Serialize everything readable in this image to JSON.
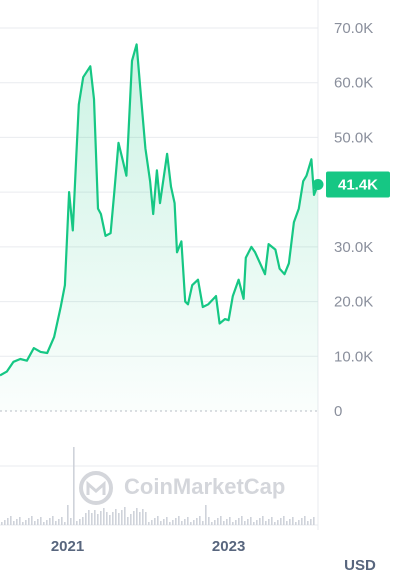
{
  "watermark": "CoinMarketCap",
  "currency": "USD",
  "colors": {
    "line": "#16c784",
    "grid": "#e9ebef",
    "axis_text": "#8a8f9c",
    "volume": "#cfd3da"
  },
  "chart_data": {
    "type": "area",
    "ylim": [
      0,
      70000
    ],
    "y_ticks": [
      {
        "value": 0,
        "label": "0"
      },
      {
        "value": 10000,
        "label": "10.0K"
      },
      {
        "value": 20000,
        "label": "20.0K"
      },
      {
        "value": 30000,
        "label": "30.0K"
      },
      {
        "value": 40000,
        "label": "40.0K"
      },
      {
        "value": 50000,
        "label": "50.0K"
      },
      {
        "value": 60000,
        "label": "60.0K"
      },
      {
        "value": 70000,
        "label": "70.0K"
      }
    ],
    "x_range": [
      "2020-03-01",
      "2024-02-10"
    ],
    "x_ticks": [
      {
        "value": "2021-01-01",
        "label": "2021"
      },
      {
        "value": "2023-01-01",
        "label": "2023"
      }
    ],
    "current": {
      "value": 41400,
      "label": "41.4K"
    },
    "series": [
      {
        "x": [
          "2020-03-01",
          "2020-04-01",
          "2020-05-01",
          "2020-06-01",
          "2020-07-01",
          "2020-08-01",
          "2020-09-01",
          "2020-10-01",
          "2020-11-01",
          "2020-12-01",
          "2020-12-20",
          "2021-01-08",
          "2021-01-25",
          "2021-02-10",
          "2021-02-21",
          "2021-03-13",
          "2021-04-14",
          "2021-05-01",
          "2021-05-19",
          "2021-06-01",
          "2021-06-22",
          "2021-07-15",
          "2021-08-01",
          "2021-08-20",
          "2021-09-07",
          "2021-09-25",
          "2021-10-20",
          "2021-11-10",
          "2021-12-01",
          "2021-12-20",
          "2022-01-10",
          "2022-01-24",
          "2022-02-10",
          "2022-02-24",
          "2022-03-28",
          "2022-04-15",
          "2022-05-01",
          "2022-05-12",
          "2022-06-01",
          "2022-06-18",
          "2022-07-01",
          "2022-07-20",
          "2022-08-15",
          "2022-09-06",
          "2022-10-01",
          "2022-11-05",
          "2022-11-21",
          "2022-12-15",
          "2023-01-01",
          "2023-01-20",
          "2023-02-15",
          "2023-03-10",
          "2023-03-20",
          "2023-04-14",
          "2023-05-01",
          "2023-06-15",
          "2023-07-01",
          "2023-08-01",
          "2023-08-20",
          "2023-09-11",
          "2023-10-01",
          "2023-10-24",
          "2023-11-15",
          "2023-12-05",
          "2023-12-20",
          "2024-01-11",
          "2024-01-23",
          "2024-02-10"
        ],
        "y": [
          6500,
          7200,
          9000,
          9500,
          9200,
          11500,
          10800,
          10600,
          13500,
          19000,
          23000,
          40000,
          33000,
          47000,
          56000,
          61000,
          63000,
          57000,
          37000,
          36000,
          32000,
          32500,
          40000,
          49000,
          46000,
          43000,
          64000,
          67000,
          57000,
          48000,
          42000,
          36000,
          44000,
          38000,
          47000,
          41000,
          38000,
          29000,
          31000,
          20000,
          19500,
          23000,
          24000,
          19000,
          19500,
          21000,
          16000,
          16800,
          16600,
          21000,
          24000,
          20500,
          28000,
          30000,
          29000,
          25000,
          30500,
          29500,
          26000,
          25000,
          27000,
          34500,
          37000,
          42000,
          43000,
          46000,
          39500,
          41400
        ]
      }
    ]
  }
}
